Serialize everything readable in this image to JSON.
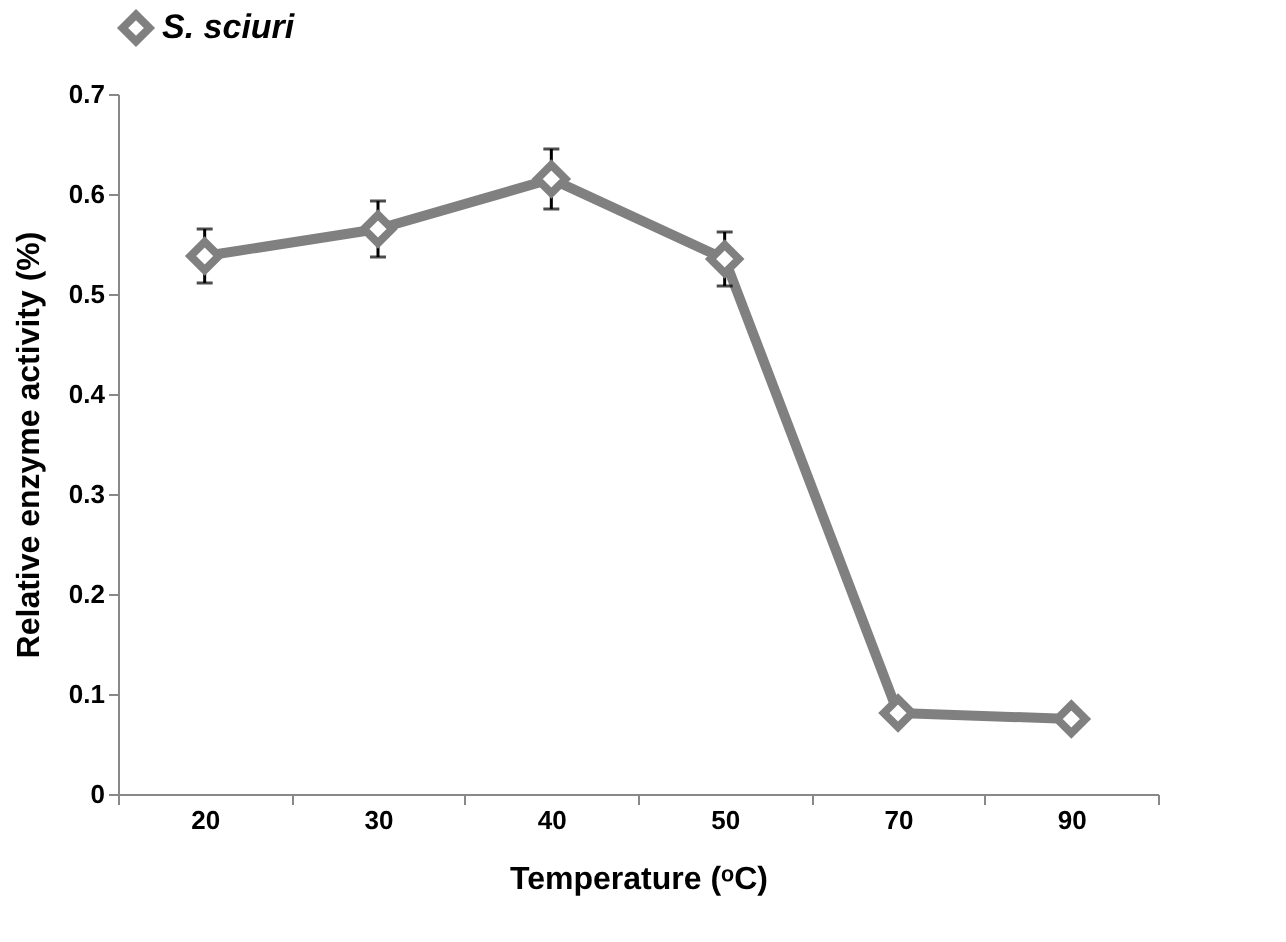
{
  "chart_data": {
    "type": "line",
    "xlabel": "Temperature (ᵒC)",
    "ylabel": "Relative enzyme activity (%)",
    "categories": [
      "20",
      "30",
      "40",
      "50",
      "70",
      "90"
    ],
    "series": [
      {
        "name": "S. sciuri",
        "color": "#808080",
        "values": [
          0.538,
          0.565,
          0.615,
          0.535,
          0.081,
          0.075
        ],
        "errors": [
          0.027,
          0.028,
          0.03,
          0.027,
          null,
          null
        ]
      }
    ],
    "ylim": [
      0,
      0.7
    ],
    "yticks": [
      0,
      0.1,
      0.2,
      0.3,
      0.4,
      0.5,
      0.6,
      0.7
    ],
    "grid": false,
    "legend": "top",
    "marker": "diamond",
    "line_style": "solid"
  }
}
